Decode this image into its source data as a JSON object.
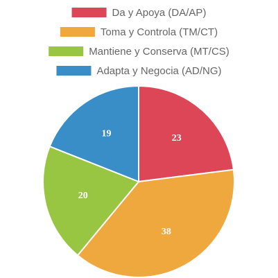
{
  "chart_data": {
    "type": "pie",
    "categories": [
      "Da y Apoya (DA/AP)",
      "Toma y Controla (TM/CT)",
      "Mantiene y Conserva (MT/CS)",
      "Adapta y Negocia (AD/NG)"
    ],
    "values": [
      23,
      38,
      20,
      19
    ],
    "colors": [
      "#dd4657",
      "#efa83d",
      "#98c542",
      "#3a8ec8"
    ],
    "legend": "top"
  }
}
